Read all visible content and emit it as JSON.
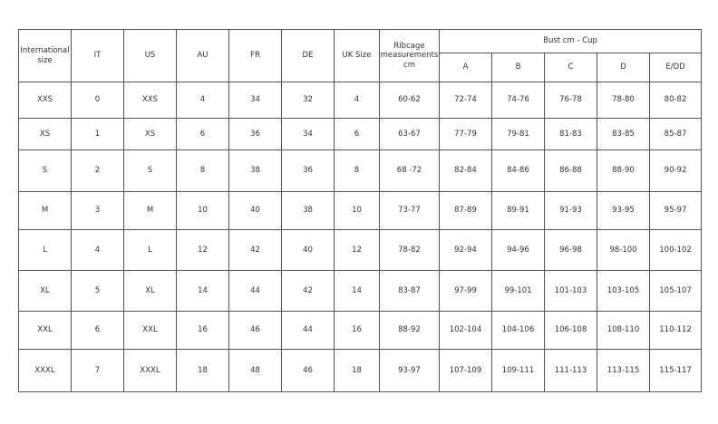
{
  "headers": {
    "intl": "International size",
    "it": "IT",
    "us": "US",
    "au": "AU",
    "fr": "FR",
    "de": "DE",
    "uk": "UK Size",
    "ribcage": "Ribcage measurements cm",
    "bust": "Bust cm - Cup",
    "cups": [
      "A",
      "B",
      "C",
      "D",
      "E/DD"
    ]
  },
  "rows": [
    [
      "XXS",
      "0",
      "XXS",
      "4",
      "34",
      "32",
      "4",
      "60-62",
      "72-74",
      "74-76",
      "76-78",
      "78-80",
      "80-82"
    ],
    [
      "XS",
      "1",
      "XS",
      "6",
      "36",
      "34",
      "6",
      "63-67",
      "77-79",
      "79-81",
      "81-83",
      "83-85",
      "85-87"
    ],
    [
      "S",
      "2",
      "S",
      "8",
      "38",
      "36",
      "8",
      "68 -72",
      "82-84",
      "84-86",
      "86-88",
      "88-90",
      "90-92"
    ],
    [
      "M",
      "3",
      "M",
      "10",
      "40",
      "38",
      "10",
      "73-77",
      "87-89",
      "89-91",
      "91-93",
      "93-95",
      "95-97"
    ],
    [
      "L",
      "4",
      "L",
      "12",
      "42",
      "40",
      "12",
      "78-82",
      "92-94",
      "94-96",
      "96-98",
      "98-100",
      "100-102"
    ],
    [
      "XL",
      "5",
      "XL",
      "14",
      "44",
      "42",
      "14",
      "83-87",
      "97-99",
      "99-101",
      "101-103",
      "103-105",
      "105-107"
    ],
    [
      "XXL",
      "6",
      "XXL",
      "16",
      "46",
      "44",
      "16",
      "88-92",
      "102-104",
      "104-106",
      "106-108",
      "108-110",
      "110-112"
    ],
    [
      "XXXL",
      "7",
      "XXXL",
      "18",
      "48",
      "46",
      "18",
      "93-97",
      "107-109",
      "109-111",
      "111-113",
      "113-115",
      "115-117"
    ]
  ]
}
